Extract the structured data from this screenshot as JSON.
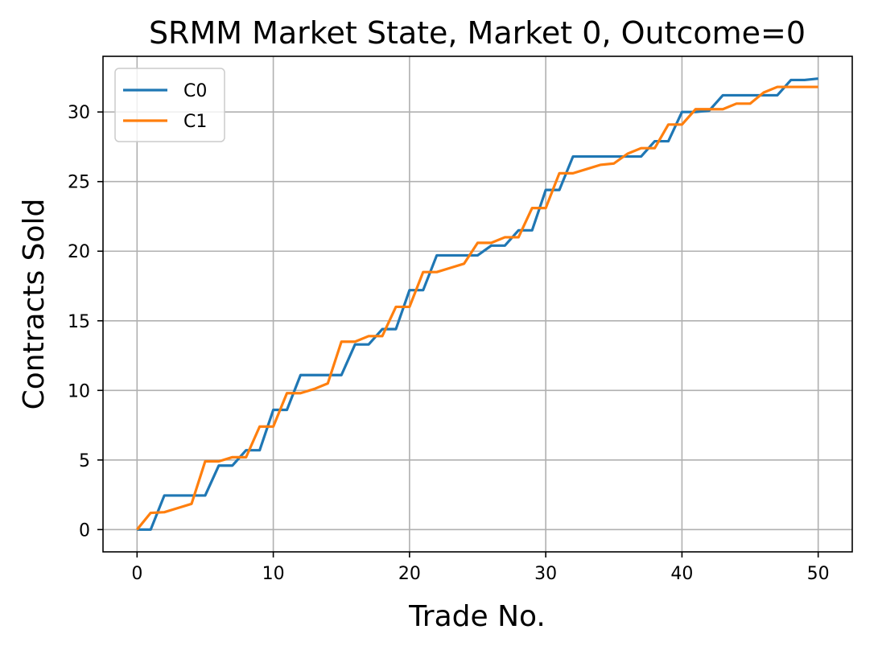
{
  "chart_data": {
    "type": "line",
    "title": "SRMM Market State, Market 0, Outcome=0",
    "xlabel": "Trade No.",
    "ylabel": "Contracts Sold",
    "xlim": [
      -2.5,
      52.5
    ],
    "ylim": [
      -1.6,
      34.0
    ],
    "xticks": [
      0,
      10,
      20,
      30,
      40,
      50
    ],
    "yticks": [
      0,
      5,
      10,
      15,
      20,
      25,
      30
    ],
    "grid": true,
    "legend_position": "top-left",
    "x": [
      0,
      1,
      2,
      3,
      4,
      5,
      6,
      7,
      8,
      9,
      10,
      11,
      12,
      13,
      14,
      15,
      16,
      17,
      18,
      19,
      20,
      21,
      22,
      23,
      24,
      25,
      26,
      27,
      28,
      29,
      30,
      31,
      32,
      33,
      34,
      35,
      36,
      37,
      38,
      39,
      40,
      41,
      42,
      43,
      44,
      45,
      46,
      47,
      48,
      49,
      50
    ],
    "series": [
      {
        "name": "C0",
        "color": "#1f77b4",
        "values": [
          0,
          0,
          2.45,
          2.45,
          2.45,
          2.45,
          4.6,
          4.6,
          5.7,
          5.7,
          8.6,
          8.6,
          11.1,
          11.1,
          11.1,
          11.1,
          13.3,
          13.3,
          14.4,
          14.4,
          17.2,
          17.2,
          19.7,
          19.7,
          19.7,
          19.7,
          20.4,
          20.4,
          21.5,
          21.5,
          24.4,
          24.4,
          26.8,
          26.8,
          26.8,
          26.8,
          26.8,
          26.8,
          27.9,
          27.9,
          30.0,
          30.0,
          30.1,
          31.2,
          31.2,
          31.2,
          31.2,
          31.2,
          32.3,
          32.3,
          32.4
        ]
      },
      {
        "name": "C1",
        "color": "#ff7f0e",
        "values": [
          0,
          1.2,
          1.25,
          1.55,
          1.85,
          4.9,
          4.9,
          5.2,
          5.2,
          7.4,
          7.4,
          9.8,
          9.8,
          10.1,
          10.5,
          13.5,
          13.5,
          13.9,
          13.9,
          16.0,
          16.0,
          18.5,
          18.5,
          18.8,
          19.1,
          20.6,
          20.6,
          21.0,
          21.0,
          23.1,
          23.1,
          25.6,
          25.6,
          25.9,
          26.2,
          26.3,
          27.0,
          27.4,
          27.4,
          29.1,
          29.1,
          30.2,
          30.2,
          30.2,
          30.6,
          30.6,
          31.4,
          31.8,
          31.8,
          31.8,
          31.8
        ]
      }
    ]
  }
}
